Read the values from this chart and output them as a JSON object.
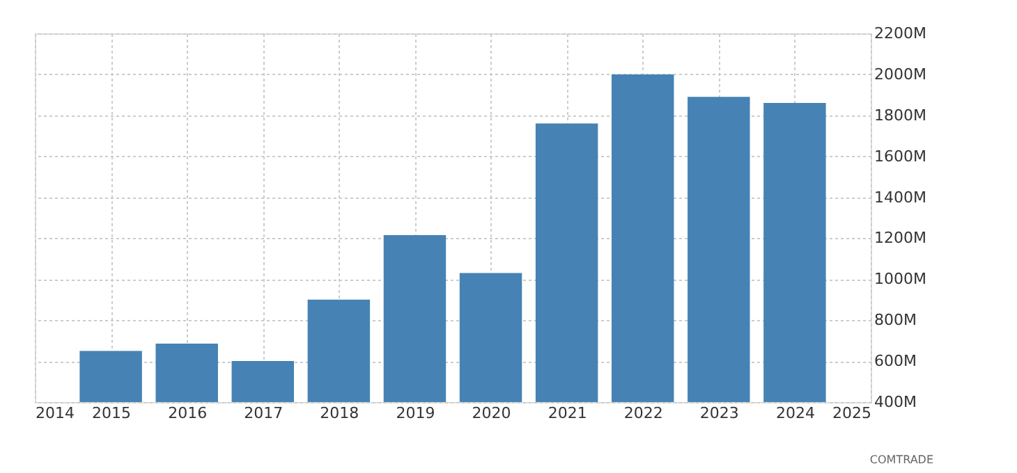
{
  "chart_data": {
    "type": "bar",
    "x": [
      2015,
      2016,
      2017,
      2018,
      2019,
      2020,
      2021,
      2022,
      2023,
      2024
    ],
    "values": [
      650,
      685,
      600,
      900,
      1215,
      1030,
      1760,
      2000,
      1890,
      1860
    ],
    "color": "#4682b4",
    "xlim": [
      2014,
      2025
    ],
    "xticks": [
      2014,
      2015,
      2016,
      2017,
      2018,
      2019,
      2020,
      2021,
      2022,
      2023,
      2024,
      2025
    ],
    "ylim": [
      400,
      2200
    ],
    "yticks": [
      {
        "value": 400,
        "label": "400M"
      },
      {
        "value": 600,
        "label": "600M"
      },
      {
        "value": 800,
        "label": "800M"
      },
      {
        "value": 1000,
        "label": "1000M"
      },
      {
        "value": 1200,
        "label": "1200M"
      },
      {
        "value": 1400,
        "label": "1400M"
      },
      {
        "value": 1600,
        "label": "1600M"
      },
      {
        "value": 1800,
        "label": "1800M"
      },
      {
        "value": 2000,
        "label": "2000M"
      },
      {
        "value": 2200,
        "label": "2200M"
      }
    ],
    "grid": true,
    "annotations": [
      "COMTRADE"
    ]
  }
}
